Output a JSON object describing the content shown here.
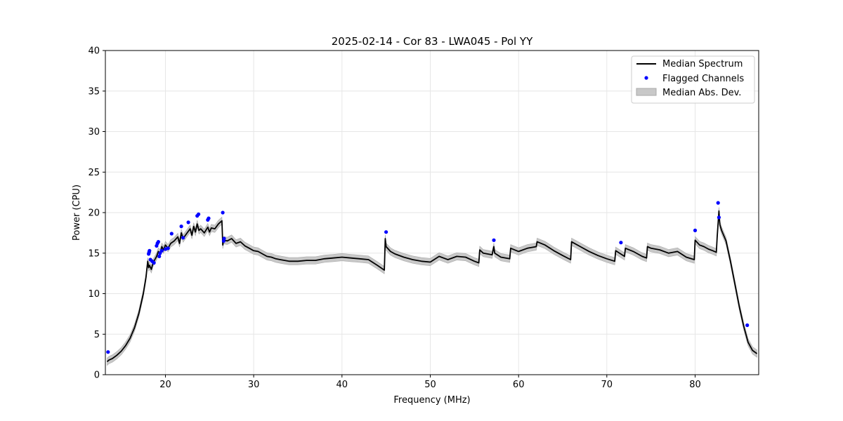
{
  "chart_data": {
    "type": "line",
    "title": "2025-02-14 - Cor 83 - LWA045 - Pol YY",
    "xlabel": "Frequency (MHz)",
    "ylabel": "Power (CPU)",
    "xlim": [
      13.2,
      87.2
    ],
    "ylim": [
      0,
      40
    ],
    "xticks": [
      20,
      30,
      40,
      50,
      60,
      70,
      80
    ],
    "yticks": [
      0,
      5,
      10,
      15,
      20,
      25,
      30,
      35,
      40
    ],
    "grid": true,
    "legend_position": "top-right",
    "legend": [
      "Median Spectrum",
      "Flagged Channels",
      "Median Abs. Dev."
    ],
    "colors": {
      "median": "#000000",
      "flagged": "#0000ff",
      "mad": "#c8c8c8",
      "mad_edge": "#aaaaaa",
      "grid": "#e6e6e6"
    },
    "median_spectrum": {
      "x": [
        13.4,
        13.6,
        14,
        14.5,
        15,
        15.5,
        16,
        16.5,
        17,
        17.5,
        17.8,
        18,
        18.1,
        18.2,
        18.4,
        18.6,
        18.8,
        19,
        19.2,
        19.4,
        19.6,
        19.8,
        20,
        20.3,
        20.6,
        21,
        21.4,
        21.6,
        21.8,
        22,
        22.4,
        22.8,
        23,
        23.2,
        23.4,
        23.6,
        23.8,
        24,
        24.4,
        24.8,
        25,
        25.2,
        25.6,
        26,
        26.4,
        26.5,
        26.6,
        27,
        27.5,
        28,
        28.5,
        29,
        29.5,
        30,
        30.5,
        31,
        31.5,
        32,
        32.5,
        33,
        33.5,
        34,
        34.5,
        35,
        36,
        37,
        38,
        39,
        40,
        41,
        42,
        43,
        44,
        44.8,
        44.9,
        45,
        45.5,
        46,
        47,
        48,
        49,
        50,
        51,
        52,
        53,
        54,
        55,
        55.5,
        55.6,
        56,
        57,
        57.2,
        57.3,
        58,
        59,
        59.1,
        60,
        61,
        62,
        62.1,
        63,
        64,
        65,
        65.9,
        66,
        67,
        68,
        69,
        70,
        70.9,
        71,
        72,
        72.1,
        73,
        74,
        74.5,
        74.6,
        75,
        76,
        77,
        78,
        79,
        79.9,
        80,
        80.5,
        81,
        81.5,
        82,
        82.4,
        82.5,
        82.7,
        82.8,
        83,
        83.5,
        84,
        84.5,
        85,
        85.5,
        86,
        86.5,
        87
      ],
      "y": [
        1.6,
        1.8,
        2.0,
        2.4,
        2.9,
        3.6,
        4.5,
        5.8,
        7.6,
        10.0,
        12.0,
        14.0,
        13.2,
        13.5,
        13.0,
        13.8,
        14.2,
        14.6,
        15.2,
        15.0,
        15.8,
        15.4,
        16.0,
        15.6,
        16.2,
        16.5,
        17.0,
        16.2,
        17.5,
        16.8,
        17.4,
        18.0,
        17.2,
        18.3,
        17.6,
        18.6,
        17.8,
        18.0,
        17.5,
        18.2,
        17.6,
        18.1,
        18.0,
        18.6,
        19.0,
        16.0,
        16.6,
        16.5,
        16.8,
        16.2,
        16.4,
        15.9,
        15.6,
        15.3,
        15.2,
        14.9,
        14.6,
        14.5,
        14.3,
        14.2,
        14.1,
        14.0,
        14.0,
        14.0,
        14.1,
        14.1,
        14.3,
        14.4,
        14.5,
        14.4,
        14.3,
        14.2,
        13.5,
        12.9,
        16.8,
        15.8,
        15.2,
        14.9,
        14.5,
        14.2,
        14.0,
        13.9,
        14.6,
        14.2,
        14.6,
        14.5,
        14.0,
        13.8,
        15.4,
        15.0,
        14.8,
        15.8,
        15.0,
        14.5,
        14.3,
        15.6,
        15.2,
        15.6,
        15.8,
        16.4,
        16.0,
        15.3,
        14.7,
        14.2,
        16.4,
        15.8,
        15.2,
        14.7,
        14.3,
        14.0,
        15.3,
        14.6,
        15.6,
        15.2,
        14.6,
        14.4,
        15.8,
        15.6,
        15.4,
        15.0,
        15.2,
        14.5,
        14.2,
        16.6,
        16.0,
        15.8,
        15.5,
        15.3,
        15.1,
        17.0,
        20.2,
        18.5,
        17.8,
        16.5,
        14.0,
        11.2,
        8.4,
        6.0,
        4.0,
        3.0,
        2.6
      ]
    },
    "median_abs_dev_halfwidth": 0.45,
    "flagged_channels": {
      "x": [
        13.5,
        18.1,
        18.15,
        18.2,
        18.3,
        18.5,
        18.7,
        19.0,
        19.1,
        19.2,
        19.3,
        19.4,
        19.6,
        20.0,
        20.3,
        20.7,
        21.8,
        22.0,
        22.6,
        23.6,
        23.75,
        24.8,
        24.9,
        26.5,
        26.6,
        26.65,
        45.0,
        57.2,
        71.6,
        80.0,
        82.6,
        82.7,
        85.9
      ],
      "y": [
        2.8,
        14.9,
        15.1,
        15.3,
        14.2,
        14.0,
        13.8,
        15.9,
        16.2,
        16.4,
        14.6,
        15.0,
        15.3,
        15.5,
        15.6,
        17.4,
        18.3,
        16.9,
        18.8,
        19.6,
        19.8,
        19.1,
        19.3,
        20.0,
        16.5,
        16.8,
        17.6,
        16.6,
        16.3,
        17.8,
        21.2,
        19.4,
        6.1
      ]
    }
  }
}
